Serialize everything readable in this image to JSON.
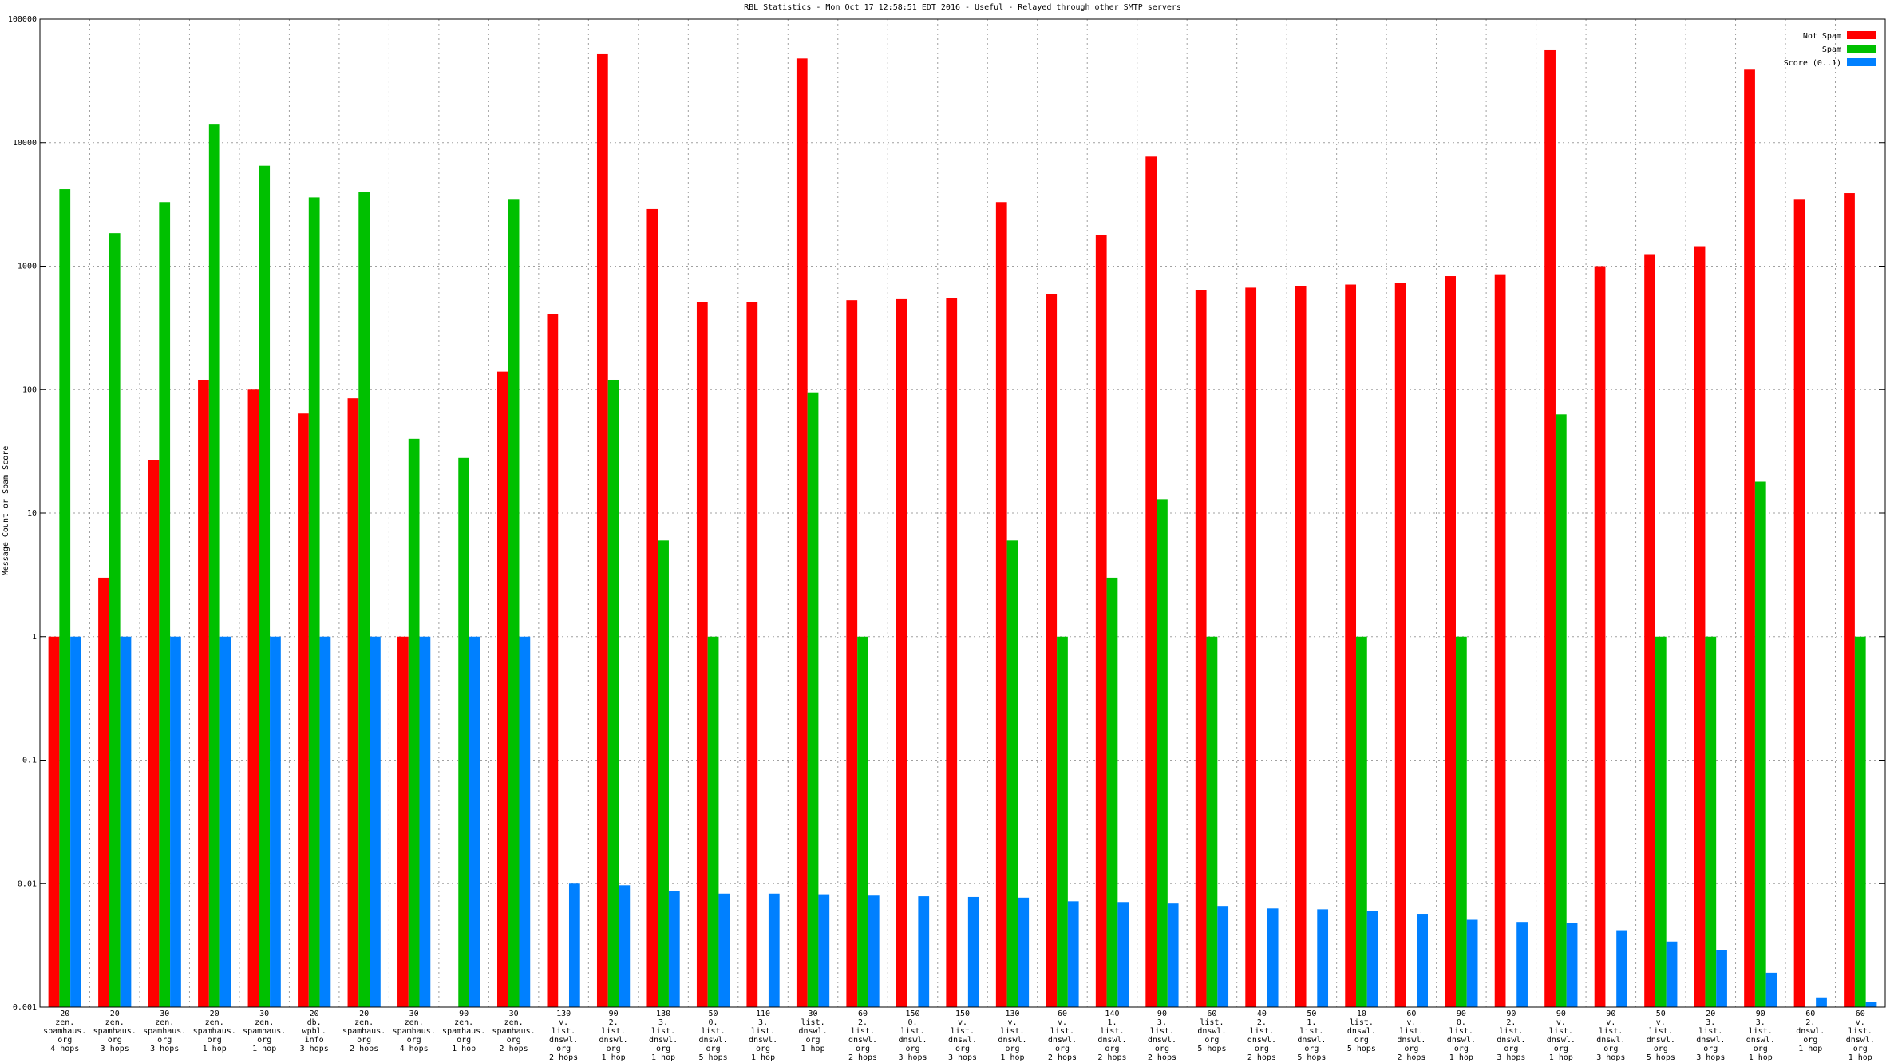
{
  "chart_data": {
    "type": "bar",
    "title": "RBL Statistics - Mon Oct 17 12:58:51 EDT 2016 - Useful - Relayed through other SMTP servers",
    "y_label": "Message Count or Spam Score",
    "y_scale": "log",
    "grid": true,
    "legend": "top-right",
    "ylim": [
      0.001,
      100000
    ],
    "yticks": [
      0.001,
      0.01,
      0.1,
      1,
      10,
      100,
      1000,
      10000,
      100000
    ],
    "categories": [
      [
        "20",
        "zen.",
        "spamhaus.",
        "org",
        "4 hops"
      ],
      [
        "20",
        "zen.",
        "spamhaus.",
        "org",
        "3 hops"
      ],
      [
        "30",
        "zen.",
        "spamhaus.",
        "org",
        "3 hops"
      ],
      [
        "20",
        "zen.",
        "spamhaus.",
        "org",
        "1 hop"
      ],
      [
        "30",
        "zen.",
        "spamhaus.",
        "org",
        "1 hop"
      ],
      [
        "20",
        "db.",
        "wpbl.",
        "info",
        "3 hops"
      ],
      [
        "20",
        "zen.",
        "spamhaus.",
        "org",
        "2 hops"
      ],
      [
        "30",
        "zen.",
        "spamhaus.",
        "org",
        "4 hops"
      ],
      [
        "90",
        "zen.",
        "spamhaus.",
        "org",
        "1 hop"
      ],
      [
        "30",
        "zen.",
        "spamhaus.",
        "org",
        "2 hops"
      ],
      [
        "130",
        "v.",
        "list.",
        "dnswl.",
        "org",
        "2 hops"
      ],
      [
        "90",
        "2.",
        "list.",
        "dnswl.",
        "org",
        "1 hop"
      ],
      [
        "130",
        "3.",
        "list.",
        "dnswl.",
        "org",
        "1 hop"
      ],
      [
        "50",
        "0.",
        "list.",
        "dnswl.",
        "org",
        "5 hops"
      ],
      [
        "110",
        "3.",
        "list.",
        "dnswl.",
        "org",
        "1 hop"
      ],
      [
        "30",
        "list.",
        "dnswl.",
        "org",
        "1 hop"
      ],
      [
        "60",
        "2.",
        "list.",
        "dnswl.",
        "org",
        "2 hops"
      ],
      [
        "150",
        "0.",
        "list.",
        "dnswl.",
        "org",
        "3 hops"
      ],
      [
        "150",
        "v.",
        "list.",
        "dnswl.",
        "org",
        "3 hops"
      ],
      [
        "130",
        "v.",
        "list.",
        "dnswl.",
        "org",
        "1 hop"
      ],
      [
        "60",
        "v.",
        "list.",
        "dnswl.",
        "org",
        "2 hops"
      ],
      [
        "140",
        "1.",
        "list.",
        "dnswl.",
        "org",
        "2 hops"
      ],
      [
        "90",
        "3.",
        "list.",
        "dnswl.",
        "org",
        "2 hops"
      ],
      [
        "60",
        "list.",
        "dnswl.",
        "org",
        "5 hops"
      ],
      [
        "40",
        "2.",
        "list.",
        "dnswl.",
        "org",
        "2 hops"
      ],
      [
        "50",
        "1.",
        "list.",
        "dnswl.",
        "org",
        "5 hops"
      ],
      [
        "10",
        "list.",
        "dnswl.",
        "org",
        "5 hops"
      ],
      [
        "60",
        "v.",
        "list.",
        "dnswl.",
        "org",
        "2 hops"
      ],
      [
        "90",
        "0.",
        "list.",
        "dnswl.",
        "org",
        "1 hop"
      ],
      [
        "90",
        "2.",
        "list.",
        "dnswl.",
        "org",
        "3 hops"
      ],
      [
        "90",
        "v.",
        "list.",
        "dnswl.",
        "org",
        "1 hop"
      ],
      [
        "90",
        "v.",
        "list.",
        "dnswl.",
        "org",
        "3 hops"
      ],
      [
        "50",
        "v.",
        "list.",
        "dnswl.",
        "org",
        "5 hops"
      ],
      [
        "20",
        "3.",
        "list.",
        "dnswl.",
        "org",
        "3 hops"
      ],
      [
        "90",
        "3.",
        "list.",
        "dnswl.",
        "org",
        "1 hop"
      ],
      [
        "60",
        "2.",
        "dnswl.",
        "org",
        "1 hop"
      ],
      [
        "60",
        "v.",
        "list.",
        "dnswl.",
        "org",
        "1 hop"
      ]
    ],
    "series": [
      {
        "name": "Not Spam",
        "color": "#ff0000",
        "values": [
          1,
          3,
          27,
          120,
          100,
          64,
          85,
          1,
          null,
          140,
          410,
          52000,
          2900,
          510,
          510,
          48000,
          530,
          540,
          550,
          3300,
          590,
          1800,
          7700,
          640,
          670,
          690,
          710,
          730,
          830,
          860,
          56000,
          1000,
          1250,
          1450,
          39000,
          3500,
          3900
        ]
      },
      {
        "name": "Spam",
        "color": "#00c000",
        "values": [
          4200,
          1850,
          3300,
          14000,
          6500,
          3600,
          4000,
          40,
          28,
          3500,
          null,
          120,
          6,
          1,
          null,
          95,
          1,
          null,
          null,
          6,
          1,
          3,
          13,
          1,
          null,
          null,
          1,
          null,
          1,
          null,
          63,
          null,
          1,
          1,
          18,
          null,
          1
        ]
      },
      {
        "name": "Score (0..1)",
        "color": "#0080ff",
        "values": [
          1,
          1,
          1,
          1,
          1,
          1,
          1,
          1,
          1,
          1,
          0.01,
          0.0097,
          0.0087,
          0.0083,
          0.0083,
          0.0082,
          0.008,
          0.0079,
          0.0078,
          0.0077,
          0.0072,
          0.0071,
          0.0069,
          0.0066,
          0.0063,
          0.0062,
          0.006,
          0.0057,
          0.0051,
          0.0049,
          0.0048,
          0.0042,
          0.0034,
          0.0029,
          0.0019,
          0.0012,
          0.0011
        ]
      }
    ]
  }
}
